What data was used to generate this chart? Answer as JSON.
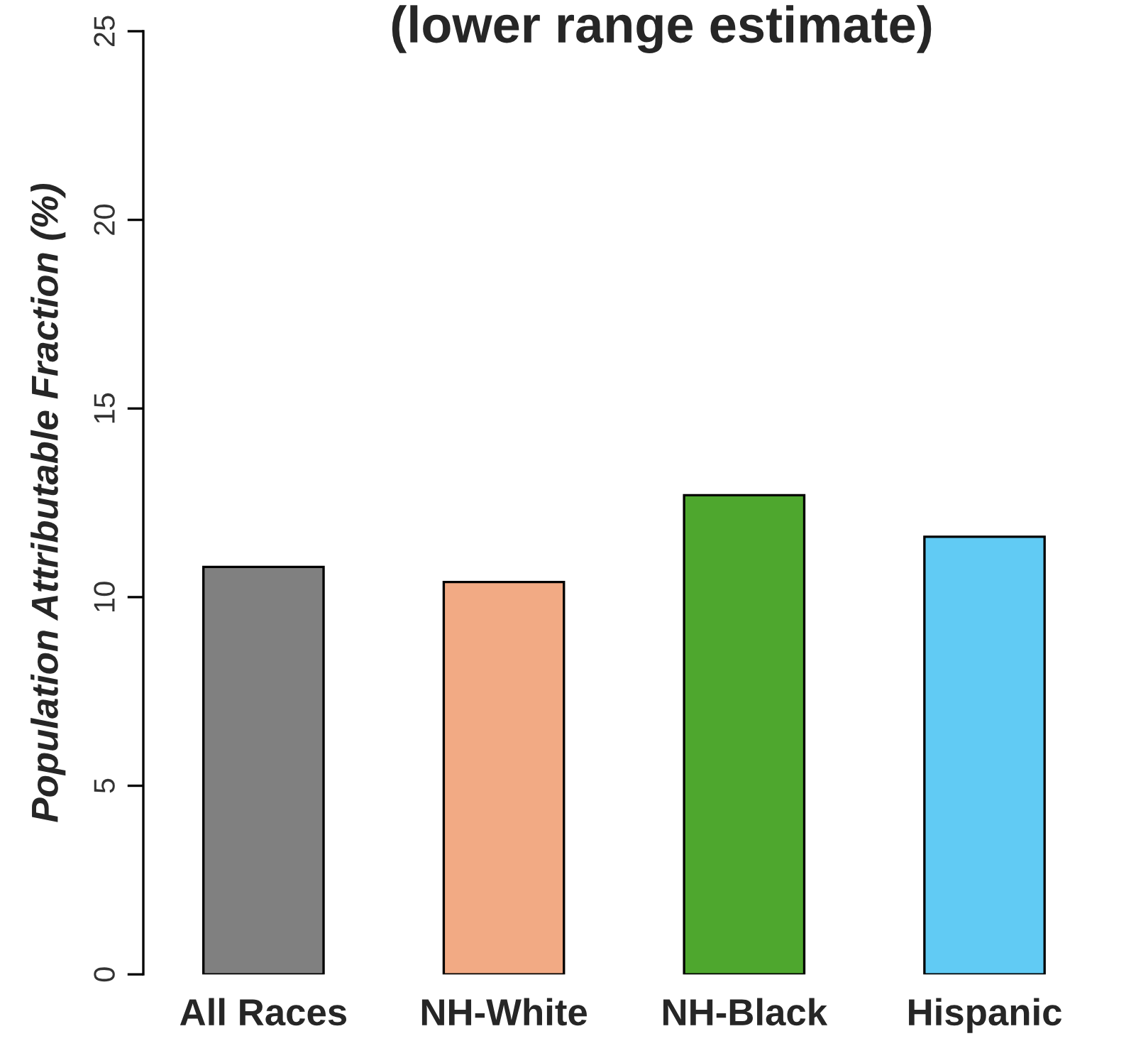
{
  "chart_data": {
    "type": "bar",
    "title": "(lower range estimate)",
    "ylabel": "Population Attributable Fraction (%)",
    "categories": [
      "All Races",
      "NH-White",
      "NH-Black",
      "Hispanic"
    ],
    "values": [
      10.8,
      10.4,
      12.7,
      11.6
    ],
    "colors": [
      "#808080",
      "#f2aa84",
      "#4ea72e",
      "#61cbf4"
    ],
    "ylim": [
      0,
      25
    ],
    "yticks": [
      0,
      5,
      10,
      15,
      20,
      25
    ],
    "grid": false,
    "legend": false
  }
}
